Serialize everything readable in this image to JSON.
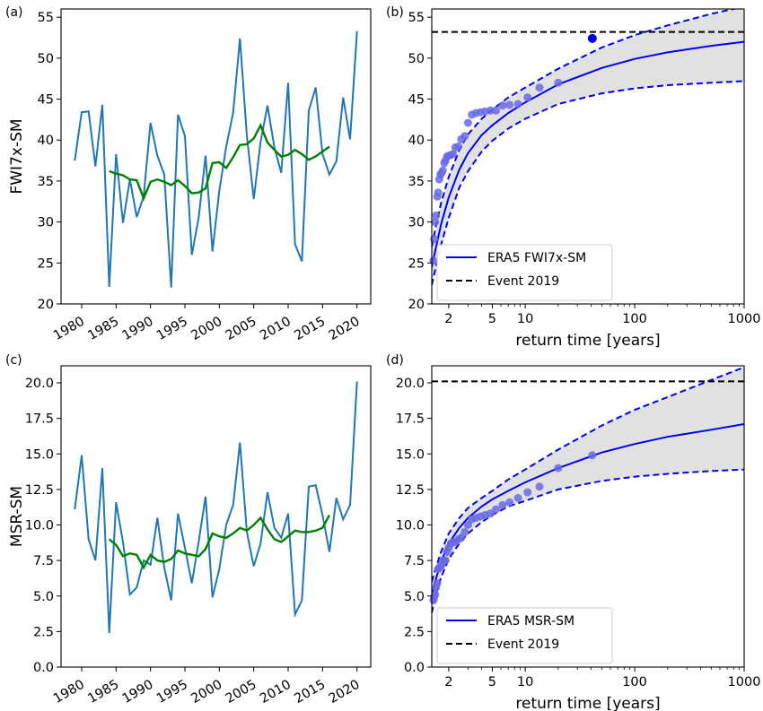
{
  "chart_data": [
    {
      "panel": "(a)",
      "type": "line",
      "ylabel": "FWI7x-SM",
      "xlim": [
        1977,
        2022
      ],
      "ylim": [
        20,
        56
      ],
      "xticks": [
        1980,
        1985,
        1990,
        1995,
        2000,
        2005,
        2010,
        2015,
        2020
      ],
      "yticks": [
        20,
        25,
        30,
        35,
        40,
        45,
        50,
        55
      ],
      "series": [
        {
          "color": "#1f77b4",
          "x": [
            1979,
            1980,
            1981,
            1982,
            1983,
            1984,
            1985,
            1986,
            1987,
            1988,
            1989,
            1990,
            1991,
            1992,
            1993,
            1994,
            1995,
            1996,
            1997,
            1998,
            1999,
            2000,
            2001,
            2002,
            2003,
            2004,
            2005,
            2006,
            2007,
            2008,
            2009,
            2010,
            2011,
            2012,
            2013,
            2014,
            2015,
            2016,
            2017,
            2018,
            2019,
            2020
          ],
          "y": [
            37.5,
            43.4,
            43.5,
            36.8,
            44.3,
            22.1,
            38.3,
            29.9,
            35.2,
            30.6,
            33.1,
            42.1,
            38.1,
            35.8,
            22.0,
            43.1,
            40.5,
            26.0,
            30.5,
            38.1,
            26.4,
            33.8,
            39.2,
            43.3,
            52.4,
            40.5,
            32.8,
            39.8,
            44.2,
            39.1,
            36.0,
            47.0,
            27.3,
            25.2,
            43.6,
            46.4,
            38.3,
            35.8,
            37.4,
            45.2,
            40.1,
            53.3
          ]
        },
        {
          "color": "#008000",
          "x": [
            1984,
            1985,
            1986,
            1987,
            1988,
            1989,
            1990,
            1991,
            1992,
            1993,
            1994,
            1995,
            1996,
            1997,
            1998,
            1999,
            2000,
            2001,
            2002,
            2003,
            2004,
            2005,
            2006,
            2007,
            2008,
            2009,
            2010,
            2011,
            2012,
            2013,
            2014,
            2015,
            2016
          ],
          "y": [
            36.2,
            35.9,
            35.7,
            35.2,
            35.1,
            32.9,
            34.9,
            35.2,
            34.9,
            34.5,
            35.1,
            34.4,
            33.5,
            33.6,
            34.1,
            37.2,
            37.3,
            36.6,
            37.9,
            39.4,
            39.5,
            40.2,
            41.8,
            39.7,
            38.8,
            38.0,
            38.2,
            38.8,
            38.3,
            37.6,
            38.0,
            38.6,
            39.2
          ]
        }
      ]
    },
    {
      "panel": "(b)",
      "type": "line",
      "xlabel": "return time [years]",
      "xscale": "log",
      "xlim": [
        1.4,
        1000
      ],
      "ylim": [
        20,
        56
      ],
      "xticks": [
        2,
        5,
        10,
        100,
        1000
      ],
      "yticks": [
        20,
        25,
        30,
        35,
        40,
        45,
        50,
        55
      ],
      "legend": "lower-left",
      "series": [
        {
          "name": "ERA5 FWI7x-SM",
          "style": "solid",
          "color": "#0000ee",
          "x": [
            1.4,
            1.5,
            1.7,
            2,
            2.5,
            3,
            4,
            5,
            7,
            10,
            20,
            50,
            100,
            200,
            500,
            1000
          ],
          "y": [
            24.5,
            26.4,
            29.7,
            33.0,
            36.4,
            38.4,
            40.6,
            41.8,
            43.3,
            44.6,
            46.8,
            48.8,
            49.9,
            50.7,
            51.5,
            52.0
          ]
        },
        {
          "name": "upper bound",
          "style": "dashed",
          "color": "#0000ee",
          "x": [
            1.4,
            1.5,
            1.7,
            2,
            2.5,
            3,
            4,
            5,
            7,
            10,
            20,
            50,
            100,
            200,
            500,
            1000
          ],
          "y": [
            27.0,
            29.0,
            32.3,
            35.5,
            38.8,
            40.7,
            42.6,
            43.7,
            45.2,
            46.4,
            48.7,
            51.3,
            52.8,
            54.0,
            55.4,
            56.3
          ]
        },
        {
          "name": "lower bound",
          "style": "dashed",
          "color": "#0000ee",
          "x": [
            1.4,
            1.5,
            1.7,
            2,
            2.5,
            3,
            4,
            5,
            7,
            10,
            20,
            50,
            100,
            200,
            500,
            1000
          ],
          "y": [
            22.3,
            24.1,
            27.2,
            30.5,
            34.2,
            36.2,
            38.6,
            39.9,
            41.4,
            42.6,
            44.4,
            45.7,
            46.3,
            46.7,
            47.0,
            47.2
          ]
        },
        {
          "name": "Event 2019",
          "style": "dashed",
          "color": "#000000",
          "x": [
            1.4,
            1000
          ],
          "y": [
            53.2,
            53.2
          ]
        }
      ],
      "points": {
        "color": "#6a6ae6",
        "x": [
          1.45,
          1.47,
          1.5,
          1.53,
          1.57,
          1.6,
          1.64,
          1.68,
          1.72,
          1.77,
          1.82,
          1.87,
          1.93,
          2.0,
          2.1,
          2.2,
          2.3,
          2.45,
          2.6,
          2.8,
          3.0,
          3.25,
          3.55,
          3.9,
          4.3,
          4.8,
          5.4,
          6.2,
          7.2,
          8.6,
          10.5,
          13.5,
          20
        ],
        "y": [
          25.3,
          27.9,
          30.0,
          30.8,
          33.1,
          33.6,
          35.2,
          35.8,
          36.0,
          36.3,
          37.2,
          37.5,
          38.0,
          38.1,
          38.2,
          38.3,
          39.1,
          39.2,
          40.1,
          40.5,
          42.1,
          43.1,
          43.3,
          43.4,
          43.5,
          43.6,
          43.6,
          44.2,
          44.3,
          44.4,
          45.2,
          46.4,
          47.0
        ]
      },
      "event_point": {
        "x": 41,
        "y": 52.4,
        "color": "#0000ee"
      }
    },
    {
      "panel": "(c)",
      "type": "line",
      "ylabel": "MSR-SM",
      "xlim": [
        1977,
        2022
      ],
      "ylim": [
        0,
        21.2
      ],
      "xticks": [
        1980,
        1985,
        1990,
        1995,
        2000,
        2005,
        2010,
        2015,
        2020
      ],
      "yticks": [
        "0.0",
        "2.5",
        "5.0",
        "7.5",
        "10.0",
        "12.5",
        "15.0",
        "17.5",
        "20.0"
      ],
      "series": [
        {
          "color": "#1f77b4",
          "x": [
            1979,
            1980,
            1981,
            1982,
            1983,
            1984,
            1985,
            1986,
            1987,
            1988,
            1989,
            1990,
            1991,
            1992,
            1993,
            1994,
            1995,
            1996,
            1997,
            1998,
            1999,
            2000,
            2001,
            2002,
            2003,
            2004,
            2005,
            2006,
            2007,
            2008,
            2009,
            2010,
            2011,
            2012,
            2013,
            2014,
            2015,
            2016,
            2017,
            2018,
            2019,
            2020
          ],
          "y": [
            11.1,
            14.9,
            9.0,
            7.5,
            14.0,
            2.4,
            11.6,
            8.8,
            5.1,
            5.6,
            7.5,
            7.2,
            10.5,
            7.0,
            4.7,
            10.8,
            8.4,
            5.9,
            8.8,
            12.0,
            4.9,
            6.9,
            10.0,
            11.4,
            15.8,
            9.5,
            7.1,
            8.7,
            12.3,
            9.8,
            9.1,
            10.8,
            3.7,
            4.7,
            12.7,
            12.8,
            10.7,
            8.1,
            11.9,
            10.4,
            11.4,
            20.1
          ]
        },
        {
          "color": "#008000",
          "x": [
            1984,
            1985,
            1986,
            1987,
            1988,
            1989,
            1990,
            1991,
            1992,
            1993,
            1994,
            1995,
            1996,
            1997,
            1998,
            1999,
            2000,
            2001,
            2002,
            2003,
            2004,
            2005,
            2006,
            2007,
            2008,
            2009,
            2010,
            2011,
            2012,
            2013,
            2014,
            2015,
            2016
          ],
          "y": [
            9.0,
            8.6,
            7.8,
            8.0,
            7.9,
            7.0,
            7.9,
            7.5,
            7.4,
            7.6,
            8.2,
            8.0,
            7.9,
            7.8,
            8.3,
            9.4,
            9.2,
            9.1,
            9.4,
            9.8,
            9.6,
            10.0,
            10.5,
            9.7,
            9.0,
            8.8,
            9.2,
            9.6,
            9.5,
            9.5,
            9.6,
            9.8,
            10.7
          ]
        }
      ]
    },
    {
      "panel": "(d)",
      "type": "line",
      "xlabel": "return time [years]",
      "xscale": "log",
      "xlim": [
        1.4,
        1000
      ],
      "ylim": [
        0,
        21.2
      ],
      "xticks": [
        2,
        5,
        10,
        100,
        1000
      ],
      "yticks": [
        "0.0",
        "2.5",
        "5.0",
        "7.5",
        "10.0",
        "12.5",
        "15.0",
        "17.5",
        "20.0"
      ],
      "legend": "lower-left",
      "series": [
        {
          "name": "ERA5 MSR-SM",
          "style": "solid",
          "color": "#0000ee",
          "x": [
            1.4,
            1.5,
            1.7,
            2,
            2.5,
            3,
            4,
            5,
            7,
            10,
            20,
            50,
            100,
            200,
            500,
            1000
          ],
          "y": [
            5.0,
            6.0,
            7.4,
            8.7,
            9.8,
            10.5,
            11.3,
            11.8,
            12.4,
            13.0,
            14.0,
            15.1,
            15.7,
            16.2,
            16.7,
            17.1
          ]
        },
        {
          "name": "upper bound",
          "style": "dashed",
          "color": "#0000ee",
          "x": [
            1.4,
            1.5,
            1.7,
            2,
            2.5,
            3,
            4,
            5,
            7,
            10,
            20,
            50,
            100,
            200,
            500,
            1000
          ],
          "y": [
            6.0,
            6.8,
            8.1,
            9.4,
            10.5,
            11.2,
            11.9,
            12.4,
            13.2,
            13.9,
            15.3,
            17.0,
            18.1,
            19.0,
            20.2,
            21.1
          ]
        },
        {
          "name": "lower bound",
          "style": "dashed",
          "color": "#0000ee",
          "x": [
            1.4,
            1.5,
            1.7,
            2,
            2.5,
            3,
            4,
            5,
            7,
            10,
            20,
            50,
            100,
            200,
            500,
            1000
          ],
          "y": [
            3.8,
            4.9,
            6.3,
            7.6,
            8.7,
            9.4,
            10.2,
            10.7,
            11.3,
            11.7,
            12.5,
            13.1,
            13.4,
            13.6,
            13.8,
            13.9
          ]
        },
        {
          "name": "Event 2019",
          "style": "dashed",
          "color": "#000000",
          "x": [
            1.4,
            1000
          ],
          "y": [
            20.1,
            20.1
          ]
        }
      ],
      "points": {
        "color": "#6a6ae6",
        "x": [
          1.45,
          1.47,
          1.5,
          1.53,
          1.57,
          1.6,
          1.64,
          1.68,
          1.72,
          1.77,
          1.82,
          1.87,
          1.93,
          2.0,
          2.1,
          2.2,
          2.3,
          2.45,
          2.6,
          2.8,
          3.0,
          3.25,
          3.55,
          3.9,
          4.3,
          4.8,
          5.4,
          6.2,
          7.2,
          8.6,
          10.5,
          13.5,
          20,
          41
        ],
        "y": [
          4.7,
          4.9,
          5.1,
          5.6,
          5.9,
          6.9,
          7.0,
          7.1,
          7.2,
          7.5,
          7.5,
          7.5,
          8.1,
          8.4,
          8.7,
          8.8,
          8.8,
          9.0,
          9.1,
          9.5,
          10.0,
          10.4,
          10.5,
          10.6,
          10.7,
          10.8,
          11.1,
          11.4,
          11.6,
          11.9,
          12.3,
          12.7,
          14.0,
          14.9
        ]
      }
    }
  ]
}
